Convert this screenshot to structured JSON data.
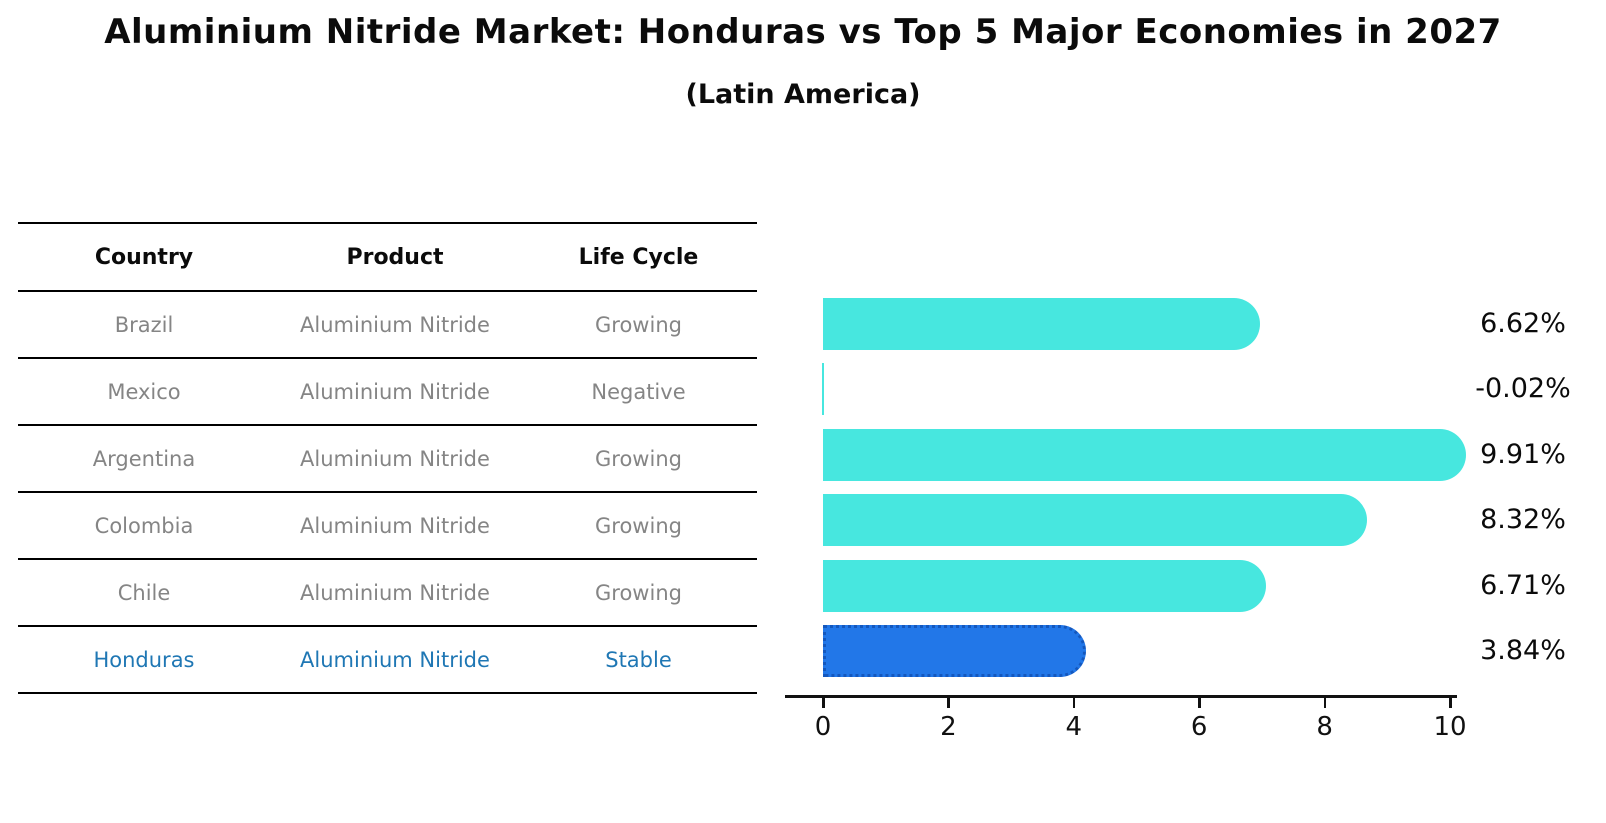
{
  "title": "Aluminium Nitride Market: Honduras vs Top 5 Major Economies in 2027",
  "subtitle": "(Latin America)",
  "table": {
    "headers": [
      "Country",
      "Product",
      "Life Cycle"
    ],
    "rows": [
      {
        "country": "Brazil",
        "product": "Aluminium Nitride",
        "life_cycle": "Growing",
        "highlight": false
      },
      {
        "country": "Mexico",
        "product": "Aluminium Nitride",
        "life_cycle": "Negative",
        "highlight": false
      },
      {
        "country": "Argentina",
        "product": "Aluminium Nitride",
        "life_cycle": "Growing",
        "highlight": false
      },
      {
        "country": "Colombia",
        "product": "Aluminium Nitride",
        "life_cycle": "Growing",
        "highlight": false
      },
      {
        "country": "Chile",
        "product": "Aluminium Nitride",
        "life_cycle": "Growing",
        "highlight": false
      },
      {
        "country": "Honduras",
        "product": "Aluminium Nitride",
        "life_cycle": "Stable",
        "highlight": true
      }
    ]
  },
  "chart_data": {
    "type": "bar",
    "orientation": "horizontal",
    "title": "Aluminium Nitride Market: Honduras vs Top 5 Major Economies in 2027 (Latin America)",
    "categories": [
      "Brazil",
      "Mexico",
      "Argentina",
      "Colombia",
      "Chile",
      "Honduras"
    ],
    "values": [
      6.62,
      -0.02,
      9.91,
      8.32,
      6.71,
      3.84
    ],
    "value_labels": [
      "6.62%",
      "-0.02%",
      "9.91%",
      "8.32%",
      "6.71%",
      "3.84%"
    ],
    "unit": "%",
    "xticks": [
      0,
      2,
      4,
      6,
      8,
      10
    ],
    "xlim": [
      0,
      10.5
    ],
    "grid": false,
    "legend": "none",
    "bar_color": "#47e7df",
    "highlight_bar_color": "#2277e8",
    "highlight_text_color": "#1f77b4",
    "highlight_index": 5,
    "highlight_category": "Honduras"
  }
}
